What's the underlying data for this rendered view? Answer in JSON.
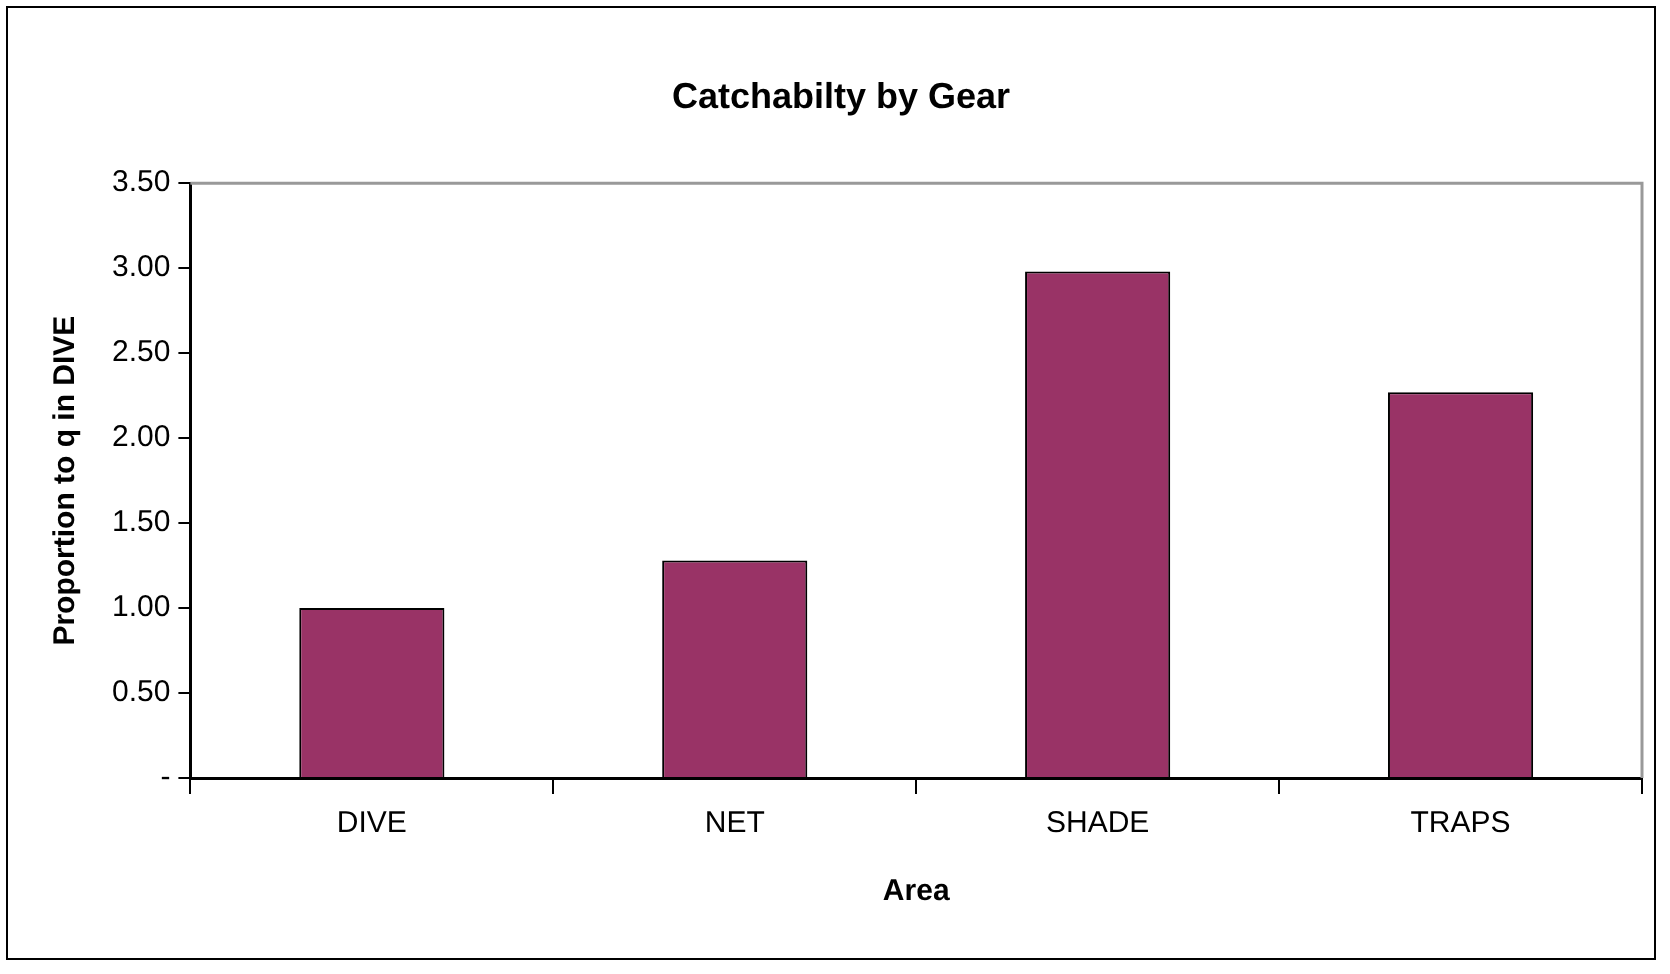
{
  "chart_data": {
    "type": "bar",
    "title": "Catchabilty by Gear",
    "xlabel": "Area",
    "ylabel": "Proportion to q in DIVE",
    "categories": [
      "DIVE",
      "NET",
      "SHADE",
      "TRAPS"
    ],
    "values": [
      1.0,
      1.28,
      2.98,
      2.27
    ],
    "color": "#993366",
    "ylim": [
      0,
      3.5
    ],
    "yticks": [
      {
        "value": 0,
        "label": "-"
      },
      {
        "value": 0.5,
        "label": "0.50"
      },
      {
        "value": 1,
        "label": "1.00"
      },
      {
        "value": 1.5,
        "label": "1.50"
      },
      {
        "value": 2,
        "label": "2.00"
      },
      {
        "value": 2.5,
        "label": "2.50"
      },
      {
        "value": 3,
        "label": "3.00"
      },
      {
        "value": 3.5,
        "label": "3.50"
      }
    ],
    "grid": false,
    "legend": false
  }
}
